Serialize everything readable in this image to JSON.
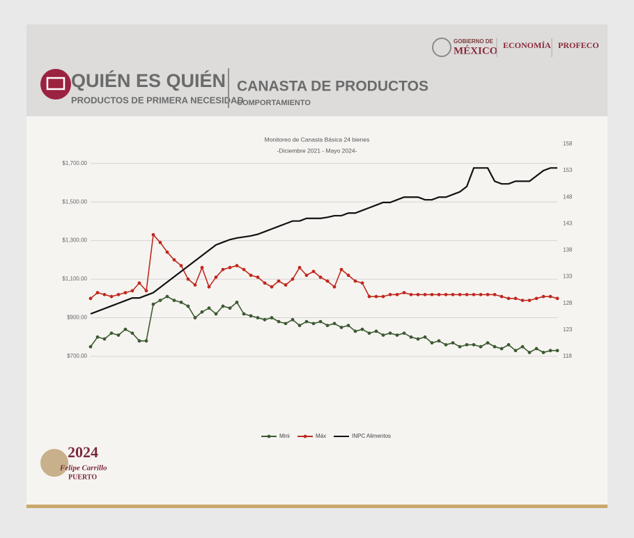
{
  "header": {
    "title": "QUIÉN ES QUIÉN",
    "subtitle": "PRODUCTOS DE PRIMERA NECESIDAD",
    "section": "CANASTA DE PRODUCTOS",
    "section_sub": "COMPORTAMIENTO",
    "logos": {
      "gob_top": "GOBIERNO DE",
      "gob_main": "MÉXICO",
      "economia": "ECONOMÍA",
      "profeco": "PROFECO"
    }
  },
  "footer": {
    "year": "2024",
    "name": "Felipe Carrillo",
    "name2": "PUERTO"
  },
  "chart_data": {
    "type": "line",
    "title": "Monitoreo de Canasta Básica 24 bienes",
    "subtitle": "-Diciembre 2021 - Mayo 2024-",
    "ylim": [
      700,
      1800
    ],
    "yticks": [
      {
        "value": 700,
        "label": "$700.00"
      },
      {
        "value": 900,
        "label": "$900.00"
      },
      {
        "value": 1100,
        "label": "$1,100.00"
      },
      {
        "value": 1300,
        "label": "$1,300.00"
      },
      {
        "value": 1500,
        "label": "$1,500.00"
      },
      {
        "value": 1700,
        "label": "$1,700.00"
      }
    ],
    "y2lim": [
      118,
      158
    ],
    "y2ticks": [
      118,
      123,
      128,
      133,
      138,
      143,
      148,
      153,
      158
    ],
    "grid": true,
    "legend": "bottom",
    "series": [
      {
        "name": "Mini",
        "color": "#3b5a30",
        "markers": true,
        "values": [
          750,
          800,
          790,
          820,
          810,
          840,
          820,
          780,
          780,
          970,
          990,
          1010,
          990,
          980,
          960,
          900,
          930,
          950,
          920,
          960,
          950,
          980,
          920,
          910,
          900,
          890,
          900,
          880,
          870,
          890,
          860,
          880,
          870,
          880,
          860,
          870,
          850,
          860,
          830,
          840,
          820,
          830,
          810,
          820,
          810,
          820,
          800,
          790,
          800,
          770,
          780,
          760,
          770,
          750,
          760,
          760,
          750,
          770,
          750,
          740,
          760,
          730,
          750,
          720,
          740,
          720,
          730,
          730
        ]
      },
      {
        "name": "Máx",
        "color": "#c0281e",
        "markers": true,
        "values": [
          1000,
          1030,
          1020,
          1010,
          1020,
          1030,
          1040,
          1080,
          1040,
          1330,
          1290,
          1240,
          1200,
          1170,
          1100,
          1070,
          1160,
          1060,
          1110,
          1150,
          1160,
          1170,
          1150,
          1120,
          1110,
          1080,
          1060,
          1090,
          1070,
          1100,
          1160,
          1120,
          1140,
          1110,
          1090,
          1060,
          1150,
          1120,
          1090,
          1080,
          1010,
          1010,
          1010,
          1020,
          1020,
          1030,
          1020,
          1020,
          1020,
          1020,
          1020,
          1020,
          1020,
          1020,
          1020,
          1020,
          1020,
          1020,
          1020,
          1010,
          1000,
          1000,
          990,
          990,
          1000,
          1010,
          1010,
          1000
        ]
      },
      {
        "name": "INPC Alimentos",
        "color": "#111111",
        "markers": false,
        "axis": "y2",
        "values": [
          126,
          126.5,
          127,
          127.5,
          128,
          128.5,
          129,
          129,
          129.5,
          130,
          131,
          132,
          133,
          134,
          135,
          136,
          137,
          138,
          139,
          139.5,
          140,
          140.3,
          140.5,
          140.7,
          141,
          141.5,
          142,
          142.5,
          143,
          143.5,
          143.5,
          144,
          144,
          144,
          144.2,
          144.5,
          144.5,
          145,
          145,
          145.5,
          146,
          146.5,
          147,
          147,
          147.5,
          148,
          148,
          148,
          147.5,
          147.5,
          148,
          148,
          148.5,
          149,
          150,
          153.5,
          153.5,
          153.5,
          151,
          150.5,
          150.5,
          151,
          151,
          151,
          152,
          153,
          153.5,
          153.5
        ]
      }
    ]
  }
}
